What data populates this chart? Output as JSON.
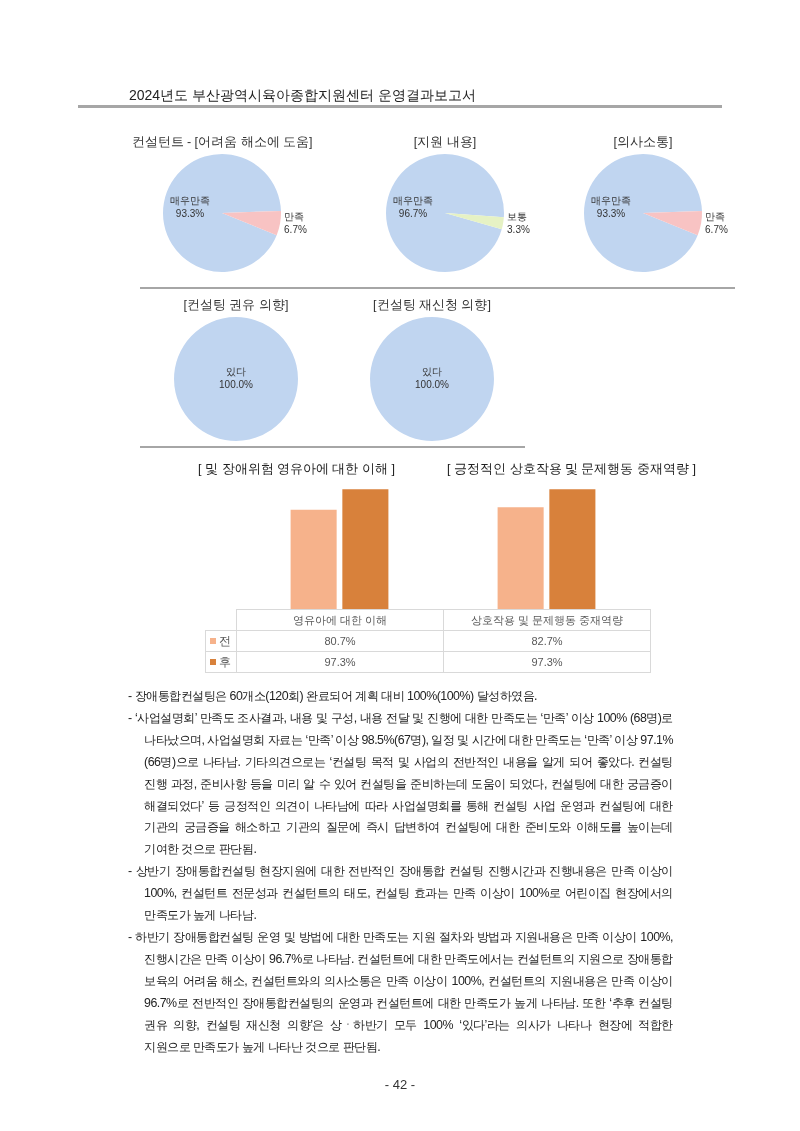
{
  "chart_data": [
    {
      "type": "other",
      "title": "2024년도 부산광역시육아종합지원센터 운영결과보고서"
    },
    {
      "type": "pie",
      "title": "컨설턴트 - [어려움 해소에 도움]",
      "categories": [
        "매우만족",
        "만족"
      ],
      "values": [
        93.3,
        6.7
      ],
      "value_labels": [
        "93.3%",
        "6.7%"
      ],
      "colors": [
        "#c0d5f0",
        "#f8c3c3"
      ]
    },
    {
      "type": "pie",
      "title": "[지원 내용]",
      "categories": [
        "매우만족",
        "보통"
      ],
      "values": [
        96.7,
        3.3
      ],
      "value_labels": [
        "96.7%",
        "3.3%"
      ],
      "colors": [
        "#c0d5f0",
        "#e6f2c4"
      ]
    },
    {
      "type": "pie",
      "title": "[의사소통]",
      "categories": [
        "매우만족",
        "만족"
      ],
      "values": [
        93.3,
        6.7
      ],
      "value_labels": [
        "93.3%",
        "6.7%"
      ],
      "colors": [
        "#c0d5f0",
        "#f8c3c3"
      ]
    },
    {
      "type": "pie",
      "title": "[컨설팅 권유 의향]",
      "categories": [
        "있다"
      ],
      "values": [
        100
      ],
      "value_labels": [
        "100.0%"
      ],
      "colors": [
        "#c0d5f0"
      ]
    },
    {
      "type": "pie",
      "title": "[컨설팅 재신청 의향]",
      "categories": [
        "있다"
      ],
      "values": [
        100
      ],
      "value_labels": [
        "100.0%"
      ],
      "colors": [
        "#c0d5f0"
      ]
    },
    {
      "type": "bar",
      "categories": [
        "영유아에 대한 이해",
        "상호작용 및 문제행동 중재역량"
      ],
      "series": [
        {
          "name": "전",
          "color": "#f6b28b",
          "values": [
            80.7,
            82.7
          ],
          "value_labels": [
            "80.7%",
            "82.7%"
          ]
        },
        {
          "name": "후",
          "color": "#d8813b",
          "values": [
            97.3,
            97.3
          ],
          "value_labels": [
            "97.3%",
            "97.3%"
          ]
        }
      ],
      "legend": "bottom left",
      "annotations": [
        "[ 및 장애위험 영유아에 대한 이해 ]",
        "[ 긍정적인 상호작용 및 문제행동 중재역량 ]"
      ]
    },
    {
      "type": "other",
      "annotations": [
        "- 장애통합컨설팅은 60개소(120회) 완료되어 계획 대비 100%(100%) 달성하였음.",
        "- ‘사업설명회’ 만족도 조사결과, 내용 및 구성, 내용 전달 및 진행에 대한 만족도는 ‘만족’ 이상 100% (68명)로 나타났으며, 사업설명회 자료는 ‘만족’ 이상 98.5%(67명), 일정 및 시간에 대한 만족도는 ‘만족’ 이상 97.1%(66명)으로 나타남. 기타의견으로는 ‘컨설팅 목적 및 사업의 전반적인 내용을 알게 되어 좋았다. 컨설팅 진행 과정, 준비사항 등을 미리 알 수 있어 컨설팅을 준비하는데 도움이 되었다, 컨설팅에 대한 궁금증이 해결되었다’ 등 긍정적인 의견이 나타남에 따라 사업설명회를 통해 컨설팅 사업 운영과 컨설팅에 대한 기관의 궁금증을 해소하고 기관의 질문에 즉시 답변하여 컨설팅에 대한 준비도와 이해도를 높이는데 기여한 것으로 판단됨.",
        "- 상반기 장애통합컨설팅 현장지원에 대한 전반적인 장애통합 컨설팅 진행시간과 진행내용은 만족 이상이 100%, 컨설턴트 전문성과 컨설턴트의 태도, 컨설팅 효과는 만족 이상이 100%로 어린이집 현장에서의 만족도가 높게 나타남.",
        "- 하반기 장애통합컨설팅 운영 및 방법에 대한 만족도는 지원 절차와 방법과 지원내용은 만족 이상이 100%, 진행시간은 만족 이상이 96.7%로 나타남. 컨설턴트에 대한 만족도에서는 컨설턴트의 지원으로 장애통합 보육의 어려움 해소, 컨설턴트와의 의사소통은 만족 이상이 100%, 컨설턴트의 지원내용은 만족 이상이 96.7%로 전반적인 장애통합컨설팅의 운영과 컨설턴트에 대한 만족도가 높게 나타남. 또한 ‘추후 컨설팅 권유 의향, 컨설팅 재신청 의향’은 상ㆍ하반기 모두 100% ‘있다’라는 의사가 나타나 현장에 적합한 지원으로 만족도가 높게 나타난 것으로 판단됨."
      ]
    },
    {
      "type": "other",
      "annotations": [
        "- 42 -"
      ]
    }
  ]
}
